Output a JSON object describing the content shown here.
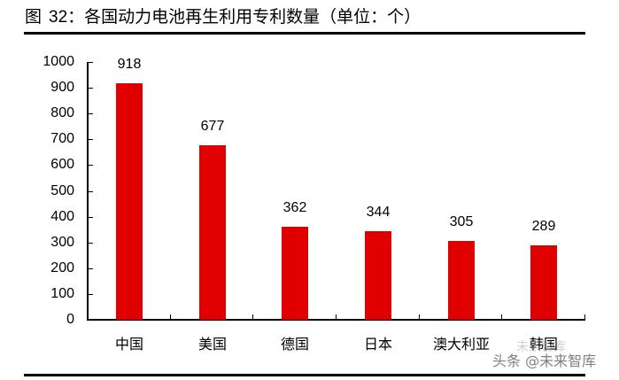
{
  "figure": {
    "label": "图",
    "number": "32：",
    "caption": "各国动力电池再生利用专利数量（单位：个）"
  },
  "watermark": {
    "text": "头条 @未来智库",
    "ghost_text": "未来智库"
  },
  "colors": {
    "bar": "#e00000",
    "axis": "#000000",
    "text": "#000000"
  },
  "chart_data": {
    "type": "bar",
    "title": "图 32：各国动力电池再生利用专利数量（单位：个）",
    "xlabel": "",
    "ylabel": "",
    "ylim": [
      0,
      1000
    ],
    "yticks": [
      0,
      100,
      200,
      300,
      400,
      500,
      600,
      700,
      800,
      900,
      1000
    ],
    "grid": false,
    "legend": null,
    "categories": [
      "中国",
      "美国",
      "德国",
      "日本",
      "澳大利亚",
      "韩国"
    ],
    "values": [
      918,
      677,
      362,
      344,
      305,
      289
    ],
    "data_labels": [
      "918",
      "677",
      "362",
      "344",
      "305",
      "289"
    ]
  }
}
